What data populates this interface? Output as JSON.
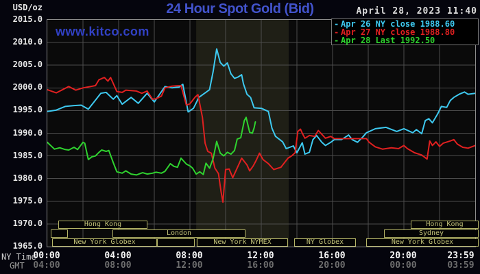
{
  "header": {
    "unit_label": "USD/oz",
    "title": "24 Hour Spot Gold (Bid)",
    "datetime": "April 28, 2023 11:40",
    "watermark": "www.kitco.com"
  },
  "legend": {
    "items": [
      {
        "dash": "-",
        "label": "Apr 26 NY close 1988.60",
        "color": "#3ec9f0"
      },
      {
        "dash": "-",
        "label": "Apr 27 NY close 1988.80",
        "color": "#e02020"
      },
      {
        "dash": "-",
        "label": "Apr 28 Last 1992.50",
        "color": "#2fd32f"
      }
    ]
  },
  "axes": {
    "y_tick_labels": [
      "2015.0",
      "2010.0",
      "2005.0",
      "2000.0",
      "1995.0",
      "1990.0",
      "1985.0",
      "1980.0",
      "1975.0",
      "1970.0",
      "1965.0"
    ],
    "x_row1_label": "NY Time",
    "x_row2_label": "GMT",
    "x_ticks": [
      {
        "hour": 0,
        "ny": "00:00",
        "gmt": "04:00"
      },
      {
        "hour": 4,
        "ny": "04:00",
        "gmt": "08:00"
      },
      {
        "hour": 8,
        "ny": "08:00",
        "gmt": "12:00"
      },
      {
        "hour": 12,
        "ny": "12:00",
        "gmt": "16:00"
      },
      {
        "hour": 16,
        "ny": "16:00",
        "gmt": "20:00"
      },
      {
        "hour": 20,
        "ny": "20:00",
        "gmt": "00:00"
      },
      {
        "hour": 23.983,
        "ny": "23:59",
        "gmt": "03:59"
      }
    ]
  },
  "sessions": [
    {
      "label": "Hong Kong",
      "row": 0,
      "start": 0.6,
      "end": 5.6
    },
    {
      "label": "Hong Kong",
      "row": 0,
      "start": 20.4,
      "end": 24.2
    },
    {
      "label": "",
      "row": 1,
      "start": 0.2,
      "end": 1.15
    },
    {
      "label": "London",
      "row": 1,
      "start": 3.65,
      "end": 11.1
    },
    {
      "label": "Sydney",
      "row": 1,
      "start": 18.9,
      "end": 24.2
    },
    {
      "label": "New York Globex",
      "row": 2,
      "start": 0.25,
      "end": 6.15
    },
    {
      "label": "",
      "row": 2,
      "start": 6.15,
      "end": 8.25
    },
    {
      "label": "New York NYMEX",
      "row": 2,
      "start": 8.4,
      "end": 13.5
    },
    {
      "label": "NY Globex",
      "row": 2,
      "start": 13.85,
      "end": 17.3
    },
    {
      "label": "New York Globex",
      "row": 2,
      "start": 17.9,
      "end": 24.2
    }
  ],
  "chart_data": {
    "type": "line",
    "title": "24 Hour Spot Gold (Bid)",
    "xlabel": "NY Time (hours)",
    "ylabel": "USD/oz",
    "ylim": [
      1965.0,
      2015.0
    ],
    "xlim_hours": [
      0,
      24
    ],
    "y_step": 5,
    "x_gridline_step_hours": 2,
    "grid": true,
    "legend_position": "top-right",
    "shaded_band_hours": [
      8.35,
      13.54
    ],
    "series": [
      {
        "name": "Apr 26",
        "close_label": "NY close 1988.60",
        "close": 1988.6,
        "color": "#3ec9f0",
        "points": [
          [
            0.0,
            1994.8
          ],
          [
            0.5,
            1995.1
          ],
          [
            1.0,
            1995.9
          ],
          [
            1.5,
            1996.1
          ],
          [
            1.9,
            1996.2
          ],
          [
            2.3,
            1995.3
          ],
          [
            2.6,
            1996.8
          ],
          [
            3.0,
            1998.8
          ],
          [
            3.3,
            1999.0
          ],
          [
            3.7,
            1997.5
          ],
          [
            3.9,
            1998.3
          ],
          [
            4.2,
            1996.4
          ],
          [
            4.7,
            1997.9
          ],
          [
            5.1,
            1996.6
          ],
          [
            5.6,
            1998.8
          ],
          [
            6.0,
            1996.9
          ],
          [
            6.6,
            2000.3
          ],
          [
            7.0,
            2000.0
          ],
          [
            7.4,
            2000.2
          ],
          [
            7.6,
            2000.8
          ],
          [
            7.9,
            1994.7
          ],
          [
            8.2,
            1995.5
          ],
          [
            8.5,
            1997.9
          ],
          [
            9.1,
            1999.6
          ],
          [
            9.3,
            2003.6
          ],
          [
            9.5,
            2008.6
          ],
          [
            9.7,
            2005.6
          ],
          [
            9.9,
            2004.8
          ],
          [
            10.1,
            2005.5
          ],
          [
            10.3,
            2003.1
          ],
          [
            10.5,
            2002.1
          ],
          [
            10.7,
            2002.4
          ],
          [
            10.9,
            2002.9
          ],
          [
            11.0,
            2000.9
          ],
          [
            11.2,
            1998.6
          ],
          [
            11.4,
            1997.9
          ],
          [
            11.6,
            1995.6
          ],
          [
            12.0,
            1995.5
          ],
          [
            12.4,
            1994.8
          ],
          [
            12.6,
            1991.1
          ],
          [
            12.8,
            1989.3
          ],
          [
            13.2,
            1988.1
          ],
          [
            13.4,
            1986.6
          ],
          [
            13.8,
            1987.2
          ],
          [
            14.0,
            1985.7
          ],
          [
            14.3,
            1987.9
          ],
          [
            14.45,
            1985.4
          ],
          [
            14.7,
            1985.8
          ],
          [
            14.9,
            1988.6
          ],
          [
            15.1,
            1989.5
          ],
          [
            15.4,
            1988.0
          ],
          [
            15.6,
            1987.3
          ],
          [
            15.9,
            1988.0
          ],
          [
            16.1,
            1988.6
          ],
          [
            16.5,
            1988.6
          ],
          [
            16.9,
            1989.6
          ],
          [
            17.1,
            1988.6
          ],
          [
            17.4,
            1988.0
          ],
          [
            17.7,
            1989.2
          ],
          [
            17.9,
            1990.1
          ],
          [
            18.4,
            1991.0
          ],
          [
            19.0,
            1991.3
          ],
          [
            19.6,
            1990.4
          ],
          [
            20.0,
            1991.0
          ],
          [
            20.5,
            1990.1
          ],
          [
            20.7,
            1990.8
          ],
          [
            21.0,
            1989.9
          ],
          [
            21.2,
            1992.8
          ],
          [
            21.4,
            1993.2
          ],
          [
            21.6,
            1992.3
          ],
          [
            21.9,
            1994.3
          ],
          [
            22.1,
            1995.9
          ],
          [
            22.4,
            1995.7
          ],
          [
            22.6,
            1997.2
          ],
          [
            22.8,
            1997.9
          ],
          [
            23.1,
            1998.6
          ],
          [
            23.4,
            1999.1
          ],
          [
            23.6,
            1998.6
          ],
          [
            24.0,
            1998.8
          ]
        ]
      },
      {
        "name": "Apr 27",
        "close_label": "NY close 1988.80",
        "close": 1988.8,
        "color": "#e02020",
        "points": [
          [
            0.0,
            1999.6
          ],
          [
            0.5,
            1998.9
          ],
          [
            1.2,
            2000.3
          ],
          [
            1.6,
            1999.5
          ],
          [
            2.0,
            2000.0
          ],
          [
            2.7,
            2000.5
          ],
          [
            2.9,
            2001.8
          ],
          [
            3.2,
            2002.3
          ],
          [
            3.4,
            2001.5
          ],
          [
            3.55,
            2002.3
          ],
          [
            3.9,
            1999.2
          ],
          [
            4.2,
            1999.0
          ],
          [
            4.4,
            1999.5
          ],
          [
            5.0,
            1999.3
          ],
          [
            5.3,
            1998.8
          ],
          [
            5.6,
            1999.3
          ],
          [
            5.9,
            1997.5
          ],
          [
            6.1,
            1997.6
          ],
          [
            6.4,
            1998.2
          ],
          [
            6.6,
            2000.0
          ],
          [
            7.0,
            2000.4
          ],
          [
            7.5,
            2000.5
          ],
          [
            7.8,
            1996.2
          ],
          [
            8.0,
            1996.5
          ],
          [
            8.3,
            1998.0
          ],
          [
            8.45,
            1998.5
          ],
          [
            8.7,
            1993.5
          ],
          [
            8.85,
            1987.8
          ],
          [
            9.0,
            1986.0
          ],
          [
            9.2,
            1985.6
          ],
          [
            9.4,
            1982.3
          ],
          [
            9.6,
            1981.1
          ],
          [
            9.75,
            1977.0
          ],
          [
            9.85,
            1974.8
          ],
          [
            10.0,
            1982.0
          ],
          [
            10.2,
            1982.1
          ],
          [
            10.4,
            1980.2
          ],
          [
            10.6,
            1981.9
          ],
          [
            10.9,
            1984.5
          ],
          [
            11.2,
            1983.0
          ],
          [
            11.35,
            1981.7
          ],
          [
            11.55,
            1982.8
          ],
          [
            11.7,
            1983.9
          ],
          [
            11.9,
            1985.6
          ],
          [
            12.1,
            1984.2
          ],
          [
            12.4,
            1983.3
          ],
          [
            12.7,
            1982.0
          ],
          [
            13.1,
            1982.5
          ],
          [
            13.5,
            1984.5
          ],
          [
            13.7,
            1985.0
          ],
          [
            13.9,
            1985.7
          ],
          [
            14.05,
            1990.4
          ],
          [
            14.2,
            1990.9
          ],
          [
            14.3,
            1990.0
          ],
          [
            14.45,
            1988.9
          ],
          [
            14.7,
            1989.5
          ],
          [
            15.0,
            1989.3
          ],
          [
            15.2,
            1990.6
          ],
          [
            15.6,
            1988.9
          ],
          [
            15.9,
            1989.3
          ],
          [
            16.1,
            1988.8
          ],
          [
            17.9,
            1988.8
          ],
          [
            18.05,
            1988.0
          ],
          [
            18.4,
            1987.0
          ],
          [
            18.8,
            1986.5
          ],
          [
            19.3,
            1986.8
          ],
          [
            19.7,
            1986.6
          ],
          [
            20.0,
            1987.3
          ],
          [
            20.2,
            1986.6
          ],
          [
            20.6,
            1985.7
          ],
          [
            21.0,
            1985.2
          ],
          [
            21.3,
            1984.3
          ],
          [
            21.45,
            1988.3
          ],
          [
            21.6,
            1987.3
          ],
          [
            21.8,
            1988.1
          ],
          [
            22.0,
            1987.1
          ],
          [
            22.2,
            1987.8
          ],
          [
            22.6,
            1988.3
          ],
          [
            22.8,
            1988.6
          ],
          [
            23.0,
            1987.6
          ],
          [
            23.3,
            1986.9
          ],
          [
            23.6,
            1986.7
          ],
          [
            24.0,
            1987.3
          ]
        ]
      },
      {
        "name": "Apr 28",
        "close_label": "Last 1992.50",
        "last": 1992.5,
        "color": "#2fd32f",
        "points": [
          [
            0.0,
            1988.0
          ],
          [
            0.4,
            1986.5
          ],
          [
            0.7,
            1986.8
          ],
          [
            1.0,
            1986.4
          ],
          [
            1.2,
            1986.3
          ],
          [
            1.5,
            1986.9
          ],
          [
            1.7,
            1986.4
          ],
          [
            2.0,
            1988.0
          ],
          [
            2.1,
            1987.8
          ],
          [
            2.3,
            1984.2
          ],
          [
            2.5,
            1984.8
          ],
          [
            2.7,
            1985.0
          ],
          [
            2.9,
            1985.8
          ],
          [
            3.05,
            1986.3
          ],
          [
            3.3,
            1986.0
          ],
          [
            3.45,
            1986.2
          ],
          [
            3.7,
            1983.5
          ],
          [
            3.9,
            1981.5
          ],
          [
            4.2,
            1981.2
          ],
          [
            4.4,
            1981.7
          ],
          [
            4.7,
            1981.0
          ],
          [
            5.0,
            1980.8
          ],
          [
            5.2,
            1981.1
          ],
          [
            5.35,
            1981.3
          ],
          [
            5.6,
            1981.0
          ],
          [
            5.9,
            1981.2
          ],
          [
            6.1,
            1981.4
          ],
          [
            6.4,
            1981.2
          ],
          [
            6.6,
            1981.6
          ],
          [
            6.9,
            1983.3
          ],
          [
            7.1,
            1982.7
          ],
          [
            7.3,
            1982.5
          ],
          [
            7.5,
            1984.5
          ],
          [
            7.8,
            1983.2
          ],
          [
            8.0,
            1982.8
          ],
          [
            8.15,
            1982.3
          ],
          [
            8.35,
            1981.0
          ],
          [
            8.55,
            1981.5
          ],
          [
            8.75,
            1980.9
          ],
          [
            8.9,
            1983.4
          ],
          [
            9.1,
            1982.3
          ],
          [
            9.3,
            1984.4
          ],
          [
            9.5,
            1988.2
          ],
          [
            9.7,
            1985.6
          ],
          [
            9.9,
            1985.0
          ],
          [
            10.1,
            1985.8
          ],
          [
            10.3,
            1985.4
          ],
          [
            10.5,
            1986.2
          ],
          [
            10.65,
            1988.7
          ],
          [
            10.85,
            1989.0
          ],
          [
            11.05,
            1992.8
          ],
          [
            11.15,
            1993.5
          ],
          [
            11.35,
            1990.2
          ],
          [
            11.5,
            1990.0
          ],
          [
            11.6,
            1991.2
          ],
          [
            11.67,
            1992.5
          ]
        ]
      }
    ]
  },
  "colors": {
    "background": "#05050d",
    "plot_background": "#0a0a0a",
    "nymex_band": "#1f1f16",
    "grid": "#4c4c4c",
    "frame": "#8c8c8c",
    "title_blue": "#4253cc",
    "watermark_blue": "#3141c4",
    "session_khaki": "#c3c379",
    "datetime_text": "#dcdcdc"
  }
}
